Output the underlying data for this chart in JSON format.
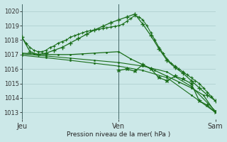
{
  "title": "Pression niveau de la mer( hPa )",
  "bg_color": "#cce8e8",
  "grid_color": "#aacccc",
  "line_color": "#1a6e1a",
  "ylim": [
    1012.5,
    1020.5
  ],
  "yticks": [
    1013,
    1014,
    1015,
    1016,
    1017,
    1018,
    1019,
    1020
  ],
  "xlim": [
    0,
    96
  ],
  "day_labels": [
    "Jeu",
    "Ven",
    "Sam"
  ],
  "day_positions": [
    0,
    48,
    96
  ],
  "vline_color": "#446666",
  "series": [
    {
      "x": [
        0,
        2,
        4,
        6,
        8,
        10,
        12,
        14,
        16,
        18,
        20,
        22,
        24,
        26,
        28,
        30,
        32,
        34,
        36,
        38,
        40,
        42,
        44,
        46,
        48,
        50,
        52,
        54,
        56,
        58,
        60,
        62,
        64,
        66,
        68,
        70,
        72,
        74,
        76,
        78,
        80,
        82,
        84,
        86,
        88,
        90,
        92,
        94,
        96
      ],
      "y": [
        1018.2,
        1017.8,
        1017.5,
        1017.3,
        1017.2,
        1017.2,
        1017.3,
        1017.5,
        1017.6,
        1017.8,
        1017.9,
        1018.0,
        1018.2,
        1018.3,
        1018.4,
        1018.5,
        1018.6,
        1018.65,
        1018.7,
        1018.75,
        1018.8,
        1018.85,
        1018.9,
        1018.95,
        1019.0,
        1019.1,
        1019.3,
        1019.5,
        1019.7,
        1019.6,
        1019.4,
        1019.0,
        1018.5,
        1018.0,
        1017.5,
        1017.1,
        1016.7,
        1016.4,
        1016.2,
        1016.0,
        1015.8,
        1015.6,
        1015.4,
        1015.2,
        1015.0,
        1014.7,
        1014.4,
        1014.1,
        1013.8
      ],
      "marker": "+",
      "markersize": 3,
      "linewidth": 0.8,
      "markeredgewidth": 0.8
    },
    {
      "x": [
        0,
        4,
        8,
        12,
        16,
        20,
        24,
        28,
        32,
        36,
        40,
        44,
        48,
        52,
        56,
        60,
        64,
        68,
        72,
        76,
        80,
        84,
        88,
        92,
        96
      ],
      "y": [
        1018.2,
        1017.2,
        1017.0,
        1017.1,
        1017.3,
        1017.5,
        1017.8,
        1018.1,
        1018.4,
        1018.7,
        1018.95,
        1019.2,
        1019.4,
        1019.6,
        1019.8,
        1019.1,
        1018.3,
        1017.4,
        1016.6,
        1016.1,
        1015.7,
        1015.2,
        1014.7,
        1014.2,
        1013.8
      ],
      "marker": "+",
      "markersize": 4,
      "linewidth": 0.9,
      "markeredgewidth": 1.0
    },
    {
      "x": [
        0,
        6,
        12,
        18,
        24,
        30,
        36,
        42,
        48,
        54,
        60,
        66,
        72,
        78,
        84,
        90,
        96
      ],
      "y": [
        1017.1,
        1017.05,
        1017.0,
        1017.0,
        1017.0,
        1017.05,
        1017.1,
        1017.15,
        1017.2,
        1016.7,
        1016.3,
        1015.9,
        1015.5,
        1015.1,
        1014.7,
        1014.2,
        1013.0
      ],
      "marker": "o",
      "markersize": 1.5,
      "linewidth": 0.9,
      "markeredgewidth": 0.5
    },
    {
      "x": [
        0,
        12,
        24,
        36,
        48,
        60,
        72,
        84,
        96
      ],
      "y": [
        1017.05,
        1016.9,
        1016.75,
        1016.6,
        1016.45,
        1016.2,
        1015.8,
        1014.8,
        1013.1
      ],
      "marker": "o",
      "markersize": 1.5,
      "linewidth": 0.8,
      "markeredgewidth": 0.5
    },
    {
      "x": [
        0,
        12,
        24,
        36,
        48,
        60,
        72,
        84,
        96
      ],
      "y": [
        1016.95,
        1016.78,
        1016.6,
        1016.4,
        1016.2,
        1015.9,
        1015.4,
        1014.2,
        1013.0
      ],
      "marker": "o",
      "markersize": 1.5,
      "linewidth": 0.8,
      "markeredgewidth": 0.5
    },
    {
      "x": [
        48,
        52,
        56,
        60,
        64,
        68,
        72,
        76,
        80,
        84,
        88,
        92,
        96
      ],
      "y": [
        1015.9,
        1016.0,
        1015.85,
        1016.3,
        1016.0,
        1015.4,
        1015.2,
        1015.5,
        1015.3,
        1015.0,
        1013.8,
        1013.5,
        1013.0
      ],
      "marker": "*",
      "markersize": 4,
      "linewidth": 0.9,
      "markeredgewidth": 0.5
    }
  ]
}
